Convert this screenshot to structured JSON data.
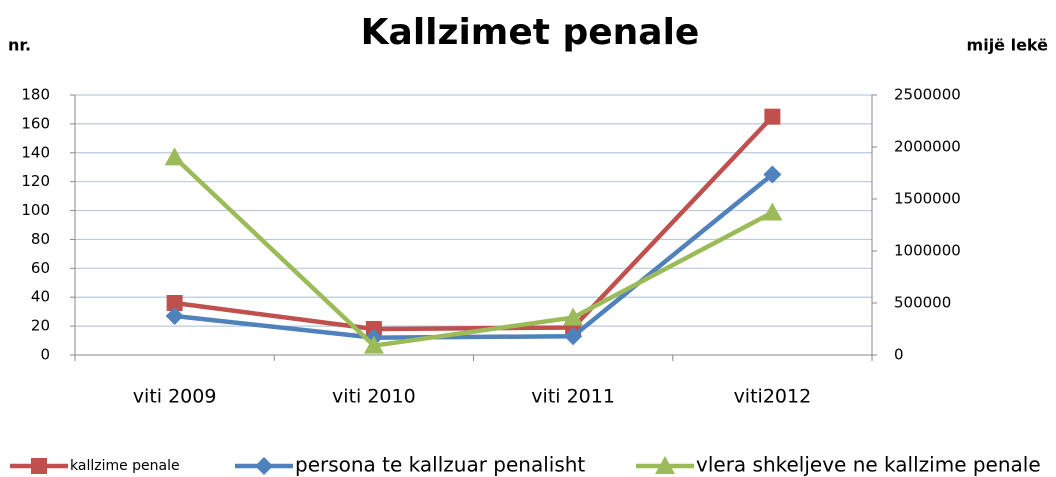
{
  "chart_data": {
    "type": "line",
    "title": "Kallzimet penale",
    "y_label": "nr.",
    "y2_label": "mijë lekë",
    "categories": [
      "viti 2009",
      "viti 2010",
      "viti 2011",
      "viti2012"
    ],
    "series": [
      {
        "name": "kallzime penale",
        "color": "#c0504d",
        "marker": "square",
        "values": [
          36,
          18,
          19,
          165
        ]
      },
      {
        "name": "persona te kallzuar penalisht",
        "color": "#4f81bd",
        "marker": "diamond",
        "values": [
          27,
          12,
          13,
          125
        ]
      },
      {
        "name": "vlera shkeljeve ne kallzime penale",
        "color": "#9bbb59",
        "marker": "triangle",
        "axis": "y2",
        "values": [
          1900000,
          90000,
          360000,
          1370000
        ]
      }
    ],
    "ylim": [
      0,
      180
    ],
    "yticks": [
      0,
      20,
      40,
      60,
      80,
      100,
      120,
      140,
      160,
      180
    ],
    "y2lim": [
      0,
      2500000
    ],
    "y2ticks": [
      0,
      500000,
      1000000,
      1500000,
      2000000,
      2500000
    ],
    "grid": true,
    "legend": "bottom"
  }
}
